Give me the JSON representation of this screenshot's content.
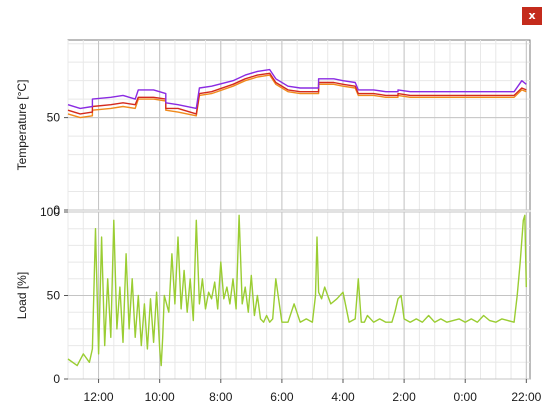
{
  "window": {
    "close_label": "x",
    "close_color": "#c42b1c"
  },
  "chart_data": [
    {
      "type": "line",
      "ylabel": "Temperature [°C]",
      "ylim": [
        0,
        92
      ],
      "yticks": [
        0,
        50
      ],
      "grid": true,
      "x_reversed": true,
      "xlim": [
        -15,
        0.12
      ],
      "series": [
        {
          "color": "#f08a1c",
          "x": [
            -15,
            -14.6,
            -14.2,
            -14.2,
            -13.6,
            -13.2,
            -12.8,
            -12.7,
            -12.2,
            -11.8,
            -11.8,
            -11.4,
            -10.8,
            -10.7,
            -10.3,
            -9.6,
            -9.2,
            -8.8,
            -8.4,
            -8.2,
            -7.8,
            -7.4,
            -6.8,
            -6.8,
            -6.3,
            -6.0,
            -5.6,
            -5.5,
            -5.0,
            -4.6,
            -4.2,
            -4.2,
            -3.8,
            -3.4,
            -2.8,
            -2.2,
            -1.6,
            -1.0,
            -0.4,
            -0.15,
            0.0
          ],
          "y": [
            52,
            50,
            51,
            54,
            55,
            56,
            55,
            60,
            60,
            59,
            54,
            53,
            51,
            62,
            63,
            67,
            70,
            72,
            73,
            68,
            64,
            63,
            63,
            68,
            68,
            67,
            66,
            62,
            62,
            61,
            61,
            62,
            61,
            61,
            61,
            61,
            61,
            61,
            61,
            65,
            64
          ]
        },
        {
          "color": "#d42a1e",
          "x": [
            -15,
            -14.6,
            -14.2,
            -14.2,
            -13.6,
            -13.2,
            -12.8,
            -12.7,
            -12.2,
            -11.8,
            -11.8,
            -11.4,
            -10.8,
            -10.7,
            -10.3,
            -9.6,
            -9.2,
            -8.8,
            -8.4,
            -8.2,
            -7.8,
            -7.4,
            -6.8,
            -6.8,
            -6.3,
            -6.0,
            -5.6,
            -5.5,
            -5.0,
            -4.6,
            -4.2,
            -4.2,
            -3.8,
            -3.4,
            -2.8,
            -2.2,
            -1.6,
            -1.0,
            -0.4,
            -0.15,
            0.0
          ],
          "y": [
            54,
            52,
            53,
            56,
            57,
            58,
            57,
            61,
            61,
            60,
            55,
            55,
            52,
            63,
            64,
            68,
            71,
            73,
            74,
            69,
            65,
            64,
            64,
            69,
            69,
            68,
            67,
            63,
            63,
            62,
            62,
            63,
            62,
            62,
            62,
            62,
            62,
            62,
            62,
            66,
            65
          ]
        },
        {
          "color": "#8a2be2",
          "x": [
            -15,
            -14.6,
            -14.2,
            -14.2,
            -13.6,
            -13.2,
            -12.8,
            -12.7,
            -12.2,
            -11.8,
            -11.8,
            -11.4,
            -10.8,
            -10.7,
            -10.3,
            -9.6,
            -9.2,
            -8.8,
            -8.4,
            -8.2,
            -7.8,
            -7.4,
            -6.8,
            -6.8,
            -6.3,
            -6.0,
            -5.6,
            -5.5,
            -5.0,
            -4.6,
            -4.2,
            -4.2,
            -3.8,
            -3.4,
            -2.8,
            -2.2,
            -1.6,
            -1.0,
            -0.4,
            -0.15,
            0.0
          ],
          "y": [
            57,
            55,
            56,
            60,
            61,
            62,
            60,
            65,
            65,
            63,
            58,
            57,
            55,
            66,
            67,
            70,
            73,
            75,
            76,
            71,
            67,
            66,
            66,
            71,
            71,
            70,
            69,
            65,
            65,
            64,
            64,
            65,
            64,
            64,
            64,
            64,
            64,
            64,
            64,
            70,
            68
          ]
        }
      ]
    },
    {
      "type": "line",
      "ylabel": "Load [%]",
      "ylim": [
        0,
        100
      ],
      "yticks": [
        0,
        50,
        100
      ],
      "grid": true,
      "x_reversed": true,
      "xlim": [
        -15,
        0.12
      ],
      "xticks": [
        {
          "x": -14,
          "label": "12:00"
        },
        {
          "x": -12,
          "label": "10:00"
        },
        {
          "x": -10,
          "label": "8:00"
        },
        {
          "x": -8,
          "label": "6:00"
        },
        {
          "x": -6,
          "label": "4:00"
        },
        {
          "x": -4,
          "label": "2:00"
        },
        {
          "x": -2,
          "label": "0:00"
        },
        {
          "x": 0,
          "label": "22:00"
        }
      ],
      "series": [
        {
          "color": "#9acd32",
          "x": [
            -15,
            -14.7,
            -14.5,
            -14.3,
            -14.2,
            -14.1,
            -14.0,
            -13.9,
            -13.8,
            -13.7,
            -13.6,
            -13.5,
            -13.4,
            -13.3,
            -13.2,
            -13.1,
            -13.0,
            -12.9,
            -12.8,
            -12.7,
            -12.6,
            -12.5,
            -12.4,
            -12.3,
            -12.2,
            -12.1,
            -12.0,
            -11.95,
            -11.9,
            -11.85,
            -11.7,
            -11.6,
            -11.5,
            -11.4,
            -11.3,
            -11.2,
            -11.1,
            -11.0,
            -10.9,
            -10.8,
            -10.7,
            -10.6,
            -10.5,
            -10.4,
            -10.3,
            -10.2,
            -10.1,
            -10.0,
            -9.9,
            -9.8,
            -9.7,
            -9.6,
            -9.5,
            -9.4,
            -9.3,
            -9.2,
            -9.1,
            -9.0,
            -8.9,
            -8.8,
            -8.7,
            -8.6,
            -8.5,
            -8.4,
            -8.3,
            -8.2,
            -8.0,
            -7.8,
            -7.6,
            -7.4,
            -7.2,
            -7.0,
            -6.9,
            -6.85,
            -6.8,
            -6.7,
            -6.6,
            -6.5,
            -6.4,
            -6.2,
            -6.0,
            -5.8,
            -5.6,
            -5.5,
            -5.4,
            -5.3,
            -5.2,
            -5.0,
            -4.8,
            -4.6,
            -4.4,
            -4.3,
            -4.2,
            -4.1,
            -4.0,
            -3.8,
            -3.6,
            -3.4,
            -3.2,
            -3.0,
            -2.8,
            -2.6,
            -2.4,
            -2.2,
            -2.0,
            -1.8,
            -1.6,
            -1.4,
            -1.2,
            -1.0,
            -0.8,
            -0.6,
            -0.4,
            -0.3,
            -0.2,
            -0.1,
            -0.05,
            0.0
          ],
          "y": [
            12,
            8,
            15,
            10,
            18,
            90,
            15,
            85,
            20,
            60,
            25,
            95,
            30,
            55,
            22,
            75,
            30,
            60,
            25,
            50,
            20,
            45,
            18,
            48,
            22,
            52,
            18,
            8,
            25,
            50,
            40,
            75,
            45,
            85,
            42,
            65,
            40,
            60,
            35,
            95,
            45,
            60,
            42,
            52,
            48,
            58,
            42,
            70,
            48,
            55,
            45,
            60,
            42,
            98,
            45,
            55,
            40,
            62,
            38,
            50,
            36,
            34,
            38,
            34,
            36,
            60,
            34,
            34,
            45,
            34,
            36,
            34,
            50,
            85,
            52,
            48,
            55,
            50,
            45,
            48,
            52,
            34,
            36,
            60,
            34,
            34,
            38,
            34,
            36,
            34,
            34,
            40,
            48,
            50,
            36,
            34,
            36,
            34,
            38,
            34,
            36,
            34,
            35,
            36,
            34,
            36,
            34,
            38,
            35,
            34,
            36,
            35,
            34,
            50,
            70,
            95,
            98,
            55
          ]
        }
      ]
    }
  ]
}
